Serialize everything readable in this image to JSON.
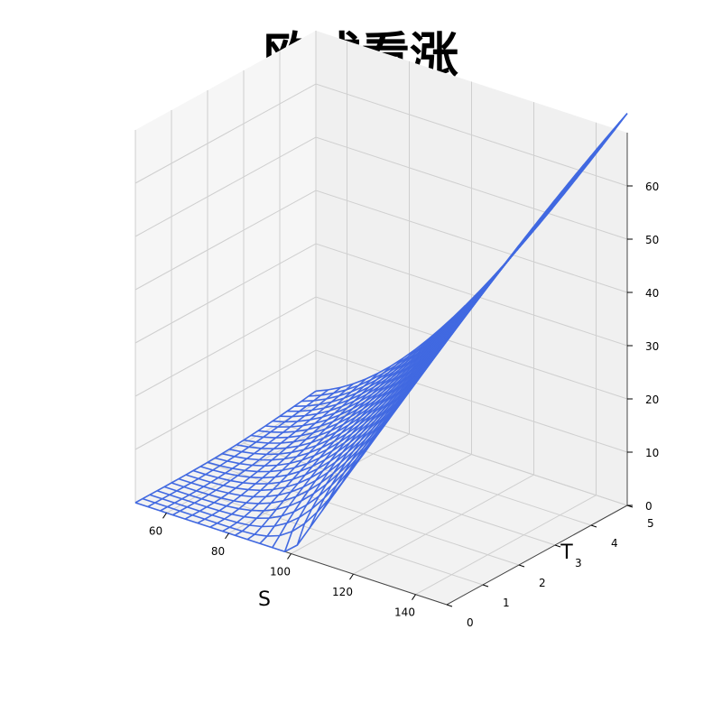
{
  "title": "欧式看涨",
  "chart_data": {
    "type": "surface",
    "style": "wireframe",
    "color": "#4169e1",
    "title": "欧式看涨",
    "xlabel": "S",
    "ylabel": "T",
    "zlabel": "",
    "xlim": [
      50,
      150
    ],
    "ylim": [
      0,
      5
    ],
    "zlim": [
      0,
      70
    ],
    "x_ticks": [
      60,
      80,
      100,
      120,
      140
    ],
    "y_ticks": [
      0,
      1,
      2,
      3,
      4,
      5
    ],
    "z_ticks": [
      0,
      10,
      20,
      30,
      40,
      50,
      60
    ],
    "grid": true,
    "surface_model": {
      "strike": 100,
      "rate": 0.05,
      "volatility": 0.2,
      "S_range": [
        50,
        150
      ],
      "T_range": [
        0,
        5
      ],
      "S_lines": 26,
      "T_lines": 26
    }
  }
}
